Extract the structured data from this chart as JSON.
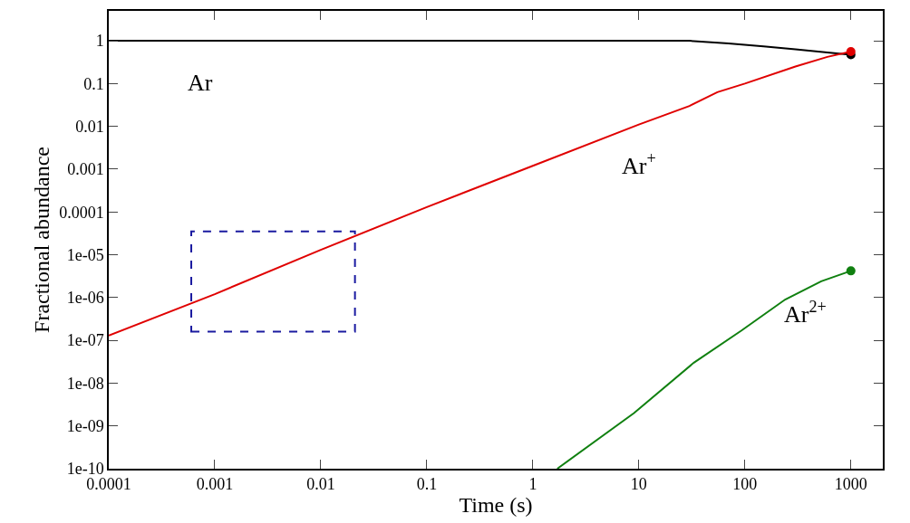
{
  "chart_data": {
    "type": "line",
    "xlabel": "Time (s)",
    "ylabel": "Fractional abundance",
    "log": "xy",
    "marker": "none",
    "line_style": "solid",
    "xlim": [
      0.0001,
      2000
    ],
    "xticks": [
      0.0001,
      0.001,
      0.01,
      0.1,
      1,
      10,
      100,
      1000
    ],
    "ylim": [
      1e-10,
      5
    ],
    "yticks": [
      1e-10,
      1e-09,
      1e-08,
      1e-07,
      1e-06,
      1e-05,
      0.0001,
      0.001,
      0.01,
      0.1,
      1
    ],
    "series": [
      {
        "color": "#000000",
        "x": [
          0.0001,
          1,
          10,
          30,
          70,
          150,
          300,
          600,
          1000
        ],
        "values": [
          1,
          1,
          1,
          1,
          0.87,
          0.74,
          0.63,
          0.53,
          0.47
        ]
      },
      {
        "color": "#e00000",
        "x": [
          0.0001,
          0.001,
          0.01,
          0.1,
          1,
          10,
          30,
          55,
          100,
          300,
          600,
          1000
        ],
        "values": [
          1.3e-07,
          1.2e-06,
          1.3e-05,
          0.00013,
          0.0012,
          0.011,
          0.03,
          0.063,
          0.1,
          0.25,
          0.42,
          0.56
        ]
      },
      {
        "color": "#108010",
        "x": [
          1.7,
          9,
          33,
          93,
          240,
          525,
          1000
        ],
        "values": [
          1e-10,
          2e-09,
          3e-08,
          1.7e-07,
          9e-07,
          2.4e-06,
          4.2e-06
        ]
      },
      {
        "color": "#000000",
        "type": "scatter",
        "marker": "circle",
        "x": [
          1000
        ],
        "values": [
          0.47
        ]
      },
      {
        "color": "#e00000",
        "type": "scatter",
        "marker": "circle",
        "x": [
          1000
        ],
        "values": [
          0.56
        ]
      },
      {
        "color": "#108010",
        "type": "scatter",
        "marker": "circle",
        "x": [
          1000
        ],
        "values": [
          4.2e-06
        ]
      }
    ],
    "annotations": [
      "Ar",
      "Ar$^{+}$",
      "Ar$^{2+}$"
    ]
  }
}
